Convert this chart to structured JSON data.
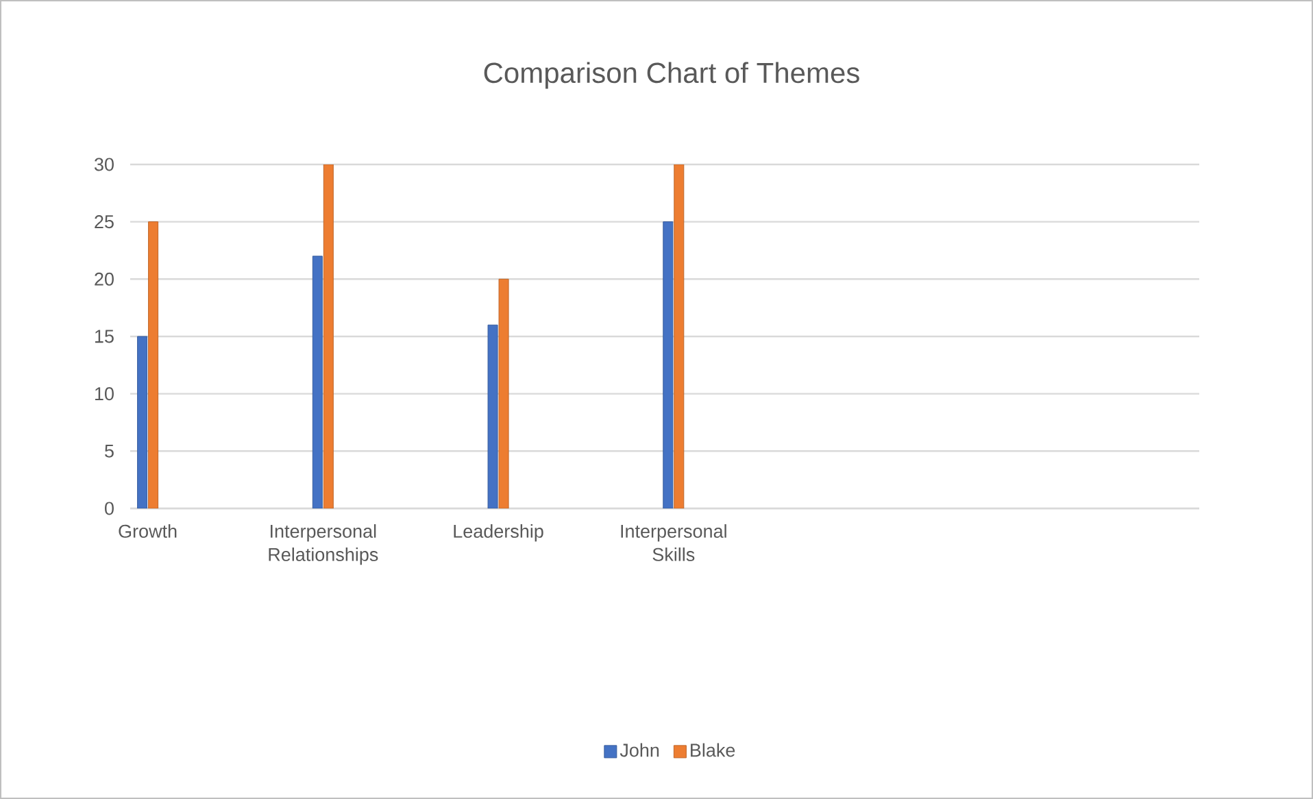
{
  "chart_data": {
    "type": "bar",
    "title": "Comparison Chart of Themes",
    "categories": [
      "Growth",
      "Interpersonal Relationships",
      "Leadership",
      "Interpersonal Skills",
      null,
      null
    ],
    "series": [
      {
        "name": "John",
        "color": "#4472c4",
        "values": [
          15,
          22,
          16,
          25,
          null,
          null
        ]
      },
      {
        "name": "Blake",
        "color": "#ed7d31",
        "values": [
          25,
          30,
          20,
          30,
          null,
          null
        ]
      }
    ],
    "ylim": [
      0,
      30
    ],
    "yticks": [
      0,
      5,
      10,
      15,
      20,
      25,
      30
    ],
    "grid": "y",
    "legend": "bottom"
  }
}
